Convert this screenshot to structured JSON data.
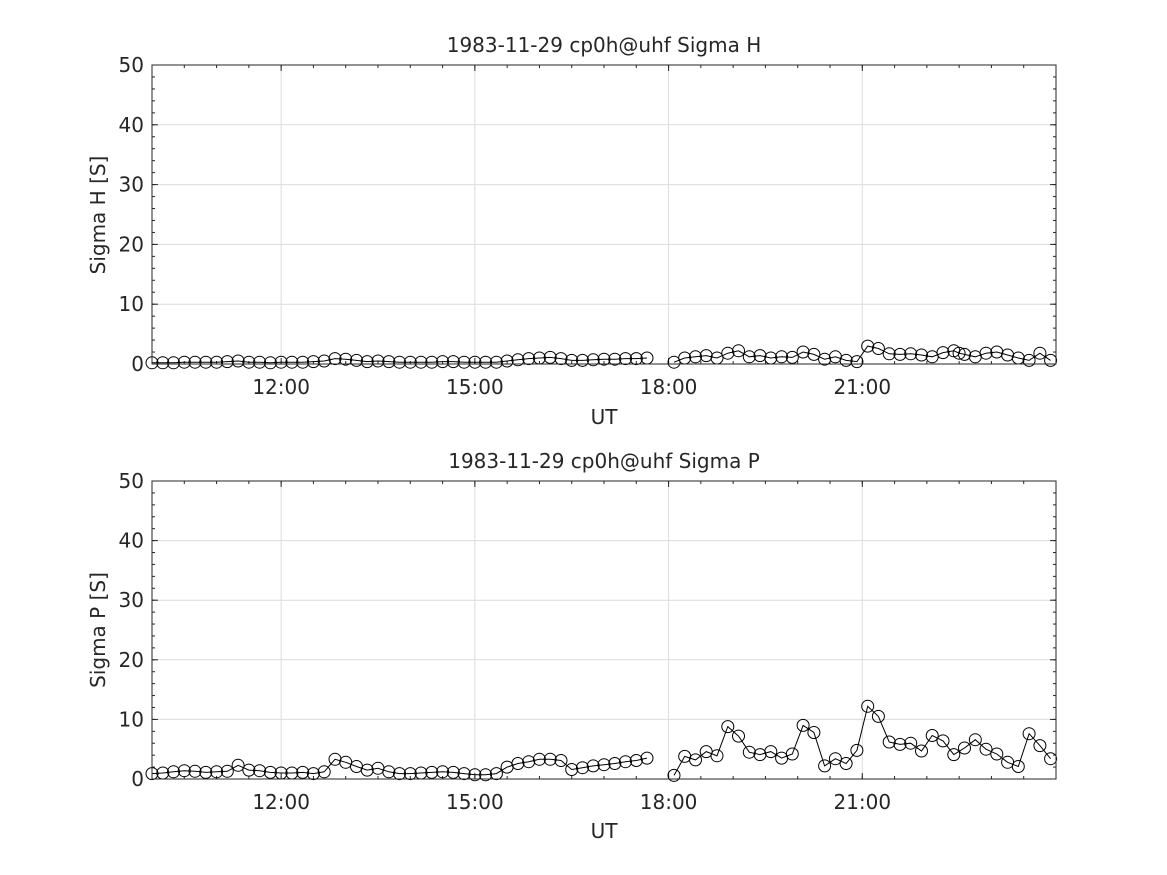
{
  "chart_data": [
    {
      "type": "scatter",
      "title": "1983-11-29  cp0h@uhf Sigma H",
      "xlabel": "UT",
      "ylabel": "Sigma H [S]",
      "xlim": [
        "10:00",
        "24:00"
      ],
      "ylim": [
        0,
        50
      ],
      "xticks": [
        "12:00",
        "15:00",
        "18:00",
        "21:00"
      ],
      "yticks": [
        "0",
        "10",
        "20",
        "30",
        "40",
        "50"
      ],
      "grid": true,
      "marker": "open-circle",
      "x": [
        "10:00",
        "10:10",
        "10:20",
        "10:30",
        "10:40",
        "10:50",
        "11:00",
        "11:10",
        "11:20",
        "11:30",
        "11:40",
        "11:50",
        "12:00",
        "12:10",
        "12:20",
        "12:30",
        "12:40",
        "12:50",
        "13:00",
        "13:10",
        "13:20",
        "13:30",
        "13:40",
        "13:50",
        "14:00",
        "14:10",
        "14:20",
        "14:30",
        "14:40",
        "14:50",
        "15:00",
        "15:10",
        "15:20",
        "15:30",
        "15:40",
        "15:50",
        "16:00",
        "16:10",
        "16:20",
        "16:30",
        "16:40",
        "16:50",
        "17:00",
        "17:10",
        "17:20",
        "17:30",
        "17:40",
        "18:05",
        "18:15",
        "18:25",
        "18:35",
        "18:45",
        "18:55",
        "19:05",
        "19:15",
        "19:25",
        "19:35",
        "19:45",
        "19:55",
        "20:05",
        "20:15",
        "20:25",
        "20:35",
        "20:45",
        "20:55",
        "21:05",
        "21:15",
        "21:25",
        "21:35",
        "21:45",
        "21:55",
        "22:05",
        "22:15",
        "22:25",
        "22:30",
        "22:35",
        "22:45",
        "22:55",
        "23:05",
        "23:15",
        "23:25",
        "23:35",
        "23:45",
        "23:55"
      ],
      "y": [
        0.2,
        0.2,
        0.2,
        0.3,
        0.3,
        0.3,
        0.3,
        0.4,
        0.5,
        0.3,
        0.3,
        0.2,
        0.3,
        0.3,
        0.3,
        0.4,
        0.5,
        0.9,
        0.8,
        0.6,
        0.4,
        0.5,
        0.4,
        0.3,
        0.3,
        0.3,
        0.3,
        0.4,
        0.4,
        0.3,
        0.3,
        0.3,
        0.3,
        0.5,
        0.7,
        0.9,
        1.0,
        1.1,
        0.9,
        0.6,
        0.6,
        0.7,
        0.8,
        0.8,
        0.9,
        0.9,
        1.0,
        0.3,
        1.0,
        1.2,
        1.4,
        1.0,
        1.8,
        2.2,
        1.2,
        1.4,
        1.0,
        1.2,
        1.1,
        2.0,
        1.6,
        0.8,
        1.2,
        0.6,
        0.4,
        3.0,
        2.6,
        1.7,
        1.6,
        1.7,
        1.5,
        1.2,
        1.9,
        2.2,
        1.8,
        1.6,
        1.2,
        1.8,
        2.0,
        1.5,
        1.0,
        0.6,
        1.8,
        0.6
      ]
    },
    {
      "type": "scatter",
      "title": "1983-11-29  cp0h@uhf Sigma P",
      "xlabel": "UT",
      "ylabel": "Sigma P [S]",
      "xlim": [
        "10:00",
        "24:00"
      ],
      "ylim": [
        0,
        50
      ],
      "xticks": [
        "12:00",
        "15:00",
        "18:00",
        "21:00"
      ],
      "yticks": [
        "0",
        "10",
        "20",
        "30",
        "40",
        "50"
      ],
      "grid": true,
      "marker": "open-circle",
      "x": [
        "10:00",
        "10:10",
        "10:20",
        "10:30",
        "10:40",
        "10:50",
        "11:00",
        "11:10",
        "11:20",
        "11:30",
        "11:40",
        "11:50",
        "12:00",
        "12:10",
        "12:20",
        "12:30",
        "12:40",
        "12:50",
        "13:00",
        "13:10",
        "13:20",
        "13:30",
        "13:40",
        "13:50",
        "14:00",
        "14:10",
        "14:20",
        "14:30",
        "14:40",
        "14:50",
        "15:00",
        "15:10",
        "15:20",
        "15:30",
        "15:40",
        "15:50",
        "16:00",
        "16:10",
        "16:20",
        "16:30",
        "16:40",
        "16:50",
        "17:00",
        "17:10",
        "17:20",
        "17:30",
        "17:40",
        "18:05",
        "18:15",
        "18:25",
        "18:35",
        "18:45",
        "18:55",
        "19:05",
        "19:15",
        "19:25",
        "19:35",
        "19:45",
        "19:55",
        "20:05",
        "20:15",
        "20:25",
        "20:35",
        "20:45",
        "20:55",
        "21:05",
        "21:15",
        "21:25",
        "21:35",
        "21:45",
        "21:55",
        "22:05",
        "22:15",
        "22:25",
        "22:35",
        "22:45",
        "22:55",
        "23:05",
        "23:15",
        "23:25",
        "23:35",
        "23:45",
        "23:55"
      ],
      "y": [
        0.9,
        1.0,
        1.2,
        1.4,
        1.3,
        1.1,
        1.2,
        1.3,
        2.3,
        1.5,
        1.4,
        1.1,
        1.0,
        1.0,
        1.1,
        0.9,
        1.2,
        3.3,
        2.8,
        2.1,
        1.5,
        1.8,
        1.2,
        0.9,
        0.9,
        1.0,
        1.1,
        1.2,
        1.1,
        0.9,
        0.7,
        0.7,
        0.9,
        2.0,
        2.6,
        2.9,
        3.3,
        3.3,
        3.1,
        1.6,
        1.9,
        2.2,
        2.4,
        2.6,
        2.9,
        3.1,
        3.5,
        0.6,
        3.8,
        3.2,
        4.6,
        3.9,
        8.8,
        7.2,
        4.5,
        4.1,
        4.6,
        3.5,
        4.2,
        9.0,
        7.8,
        2.2,
        3.4,
        2.6,
        4.8,
        12.2,
        10.5,
        6.2,
        5.8,
        6.0,
        4.7,
        7.3,
        6.4,
        4.1,
        5.2,
        6.6,
        5.0,
        4.2,
        2.8,
        2.1,
        7.6,
        5.6,
        3.4
      ]
    }
  ]
}
